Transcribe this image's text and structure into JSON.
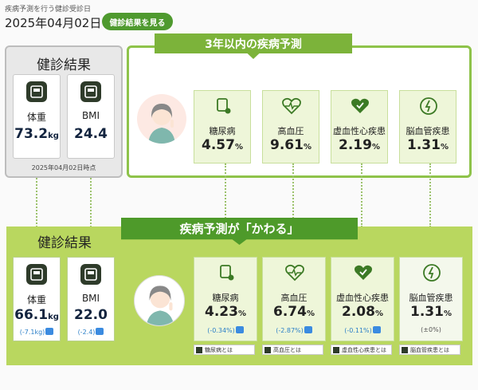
{
  "header": {
    "caption": "疾病予測を行う健診受診日",
    "date": "2025年04月02日",
    "view_button": "健診結果を見る"
  },
  "current": {
    "title": "健診結果",
    "as_of": "2025年04月02日時点",
    "metrics": [
      {
        "label": "体重",
        "value": "73.2",
        "unit": "kg",
        "icon": "scale-icon"
      },
      {
        "label": "BMI",
        "value": "24.4",
        "unit": "",
        "icon": "bmi-scale-icon"
      }
    ]
  },
  "prediction": {
    "title": "3年以内の疾病予測",
    "diseases": [
      {
        "label": "糖尿病",
        "value": "4.57",
        "unit": "%",
        "icon": "drip-icon"
      },
      {
        "label": "高血圧",
        "value": "9.61",
        "unit": "%",
        "icon": "heart-pulse-icon"
      },
      {
        "label": "虚血性心疾患",
        "value": "2.19",
        "unit": "%",
        "icon": "heart-check-icon"
      },
      {
        "label": "脳血管疾患",
        "value": "1.31",
        "unit": "%",
        "icon": "brain-icon"
      }
    ]
  },
  "improved": {
    "banner": "疾病予測が「かわる」",
    "title": "健診結果",
    "metrics": [
      {
        "label": "体重",
        "value": "66.1",
        "unit": "kg",
        "change": "(-7.1kg)"
      },
      {
        "label": "BMI",
        "value": "22.0",
        "unit": "",
        "change": "(-2.4)"
      }
    ],
    "diseases": [
      {
        "label": "糖尿病",
        "value": "4.23",
        "unit": "%",
        "change": "(-0.34%)",
        "link": "糖尿病とは"
      },
      {
        "label": "高血圧",
        "value": "6.74",
        "unit": "%",
        "change": "(-2.87%)",
        "link": "高血圧とは"
      },
      {
        "label": "虚血性心疾患",
        "value": "2.08",
        "unit": "%",
        "change": "(-0.11%)",
        "link": "虚血性心疾患とは"
      },
      {
        "label": "脳血管疾患",
        "value": "1.31",
        "unit": "%",
        "change": "(±0%)",
        "link": "脳血管疾患とは"
      }
    ]
  },
  "colors": {
    "accent": "#7cb33a",
    "dark_accent": "#4e9a2a",
    "panel": "#b9d75f",
    "card": "#eef6d9",
    "change_text": "#2b7fc8"
  }
}
